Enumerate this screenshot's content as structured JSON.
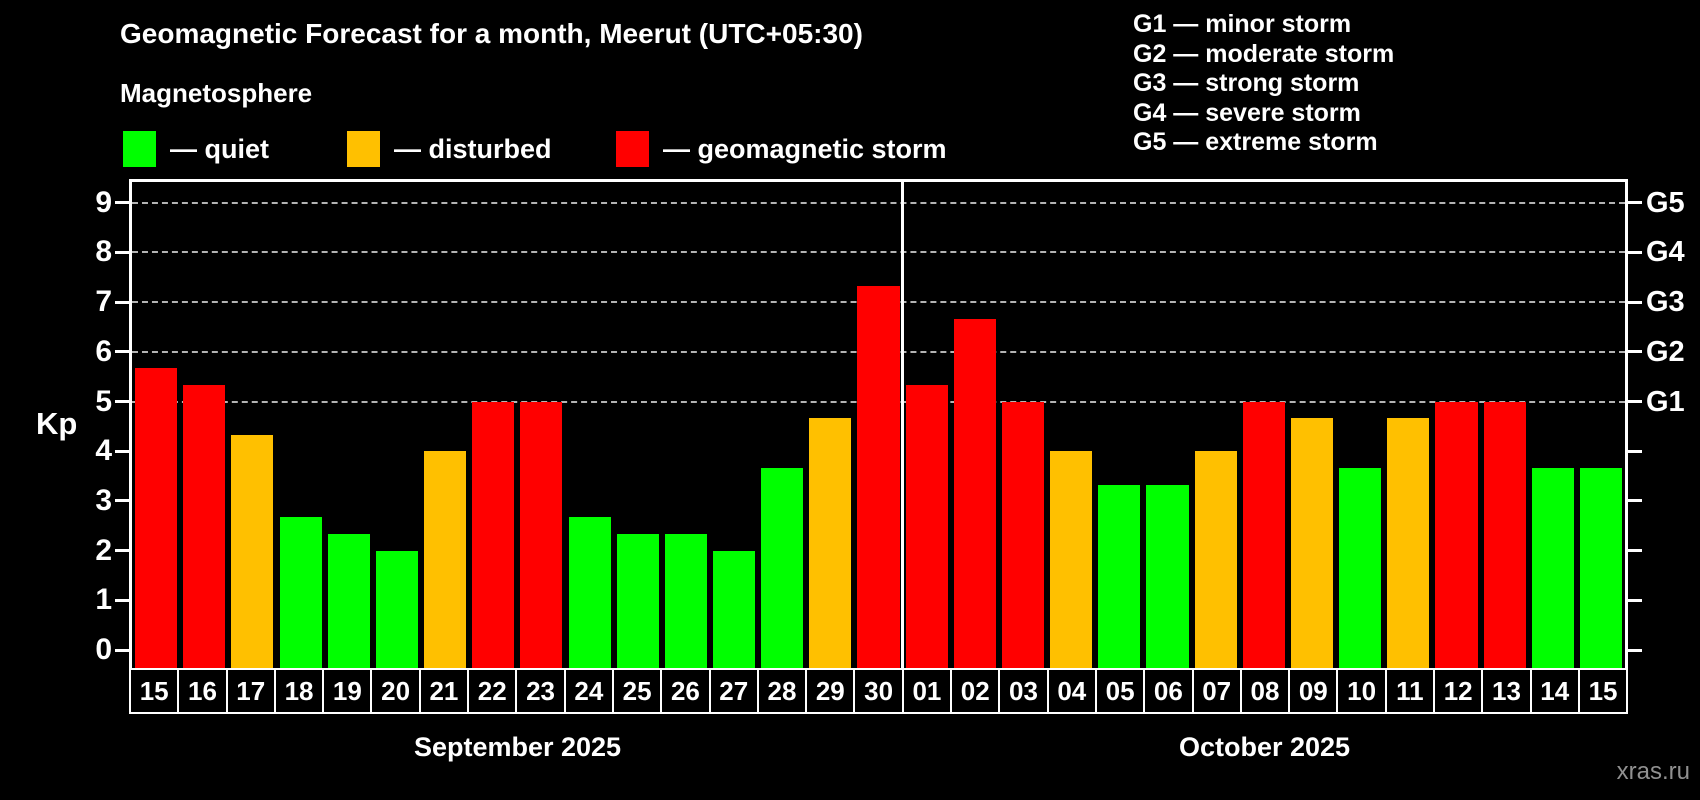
{
  "title": "Geomagnetic Forecast for a month, Meerut (UTC+05:30)",
  "subtitle": "Magnetosphere",
  "legend": {
    "quiet_label": "— quiet",
    "disturbed_label": "— disturbed",
    "storm_label": "— geomagnetic storm"
  },
  "g_legend": [
    "G1 — minor storm",
    "G2 — moderate storm",
    "G3 — strong storm",
    "G4 — severe storm",
    "G5 — extreme storm"
  ],
  "y_axis": {
    "label": "Kp",
    "ticks": [
      0,
      1,
      2,
      3,
      4,
      5,
      6,
      7,
      8,
      9
    ]
  },
  "right_axis": {
    "labels": [
      {
        "text": "G1",
        "kp": 5
      },
      {
        "text": "G2",
        "kp": 6
      },
      {
        "text": "G3",
        "kp": 7
      },
      {
        "text": "G4",
        "kp": 8
      },
      {
        "text": "G5",
        "kp": 9
      }
    ]
  },
  "months": [
    {
      "label": "September 2025"
    },
    {
      "label": "October 2025"
    }
  ],
  "watermark": "xras.ru",
  "colors": {
    "quiet": "#00ff00",
    "disturbed": "#ffc000",
    "storm": "#ff0000",
    "background": "#000000",
    "grid": "#b4b4b4"
  },
  "chart_data": {
    "type": "bar",
    "title": "Geomagnetic Forecast for a month, Meerut (UTC+05:30)",
    "ylabel": "Kp",
    "ylim": [
      0,
      9.4
    ],
    "grid_kp_levels": [
      5,
      6,
      7,
      8,
      9
    ],
    "legend_position": "top",
    "color_rule": {
      "quiet": "Kp < 4",
      "disturbed": "4 <= Kp < 5",
      "storm": "Kp >= 5"
    },
    "series": [
      {
        "name": "September 2025",
        "categories": [
          "15",
          "16",
          "17",
          "18",
          "19",
          "20",
          "21",
          "22",
          "23",
          "24",
          "25",
          "26",
          "27",
          "28",
          "29",
          "30"
        ],
        "values": [
          5.67,
          5.33,
          4.33,
          2.67,
          2.33,
          2.0,
          4.0,
          5.0,
          5.0,
          2.67,
          2.33,
          2.33,
          2.0,
          3.67,
          4.67,
          7.33
        ],
        "status": [
          "storm",
          "storm",
          "disturbed",
          "quiet",
          "quiet",
          "quiet",
          "disturbed",
          "storm",
          "storm",
          "quiet",
          "quiet",
          "quiet",
          "quiet",
          "quiet",
          "disturbed",
          "storm"
        ]
      },
      {
        "name": "October 2025",
        "categories": [
          "01",
          "02",
          "03",
          "04",
          "05",
          "06",
          "07",
          "08",
          "09",
          "10",
          "11",
          "12",
          "13",
          "14",
          "15"
        ],
        "values": [
          5.33,
          6.67,
          5.0,
          4.0,
          3.33,
          3.33,
          4.0,
          5.0,
          4.67,
          3.67,
          4.67,
          5.0,
          5.0,
          3.67,
          3.67
        ],
        "status": [
          "storm",
          "storm",
          "storm",
          "disturbed",
          "quiet",
          "quiet",
          "disturbed",
          "storm",
          "disturbed",
          "quiet",
          "disturbed",
          "storm",
          "storm",
          "quiet",
          "quiet"
        ]
      }
    ]
  }
}
